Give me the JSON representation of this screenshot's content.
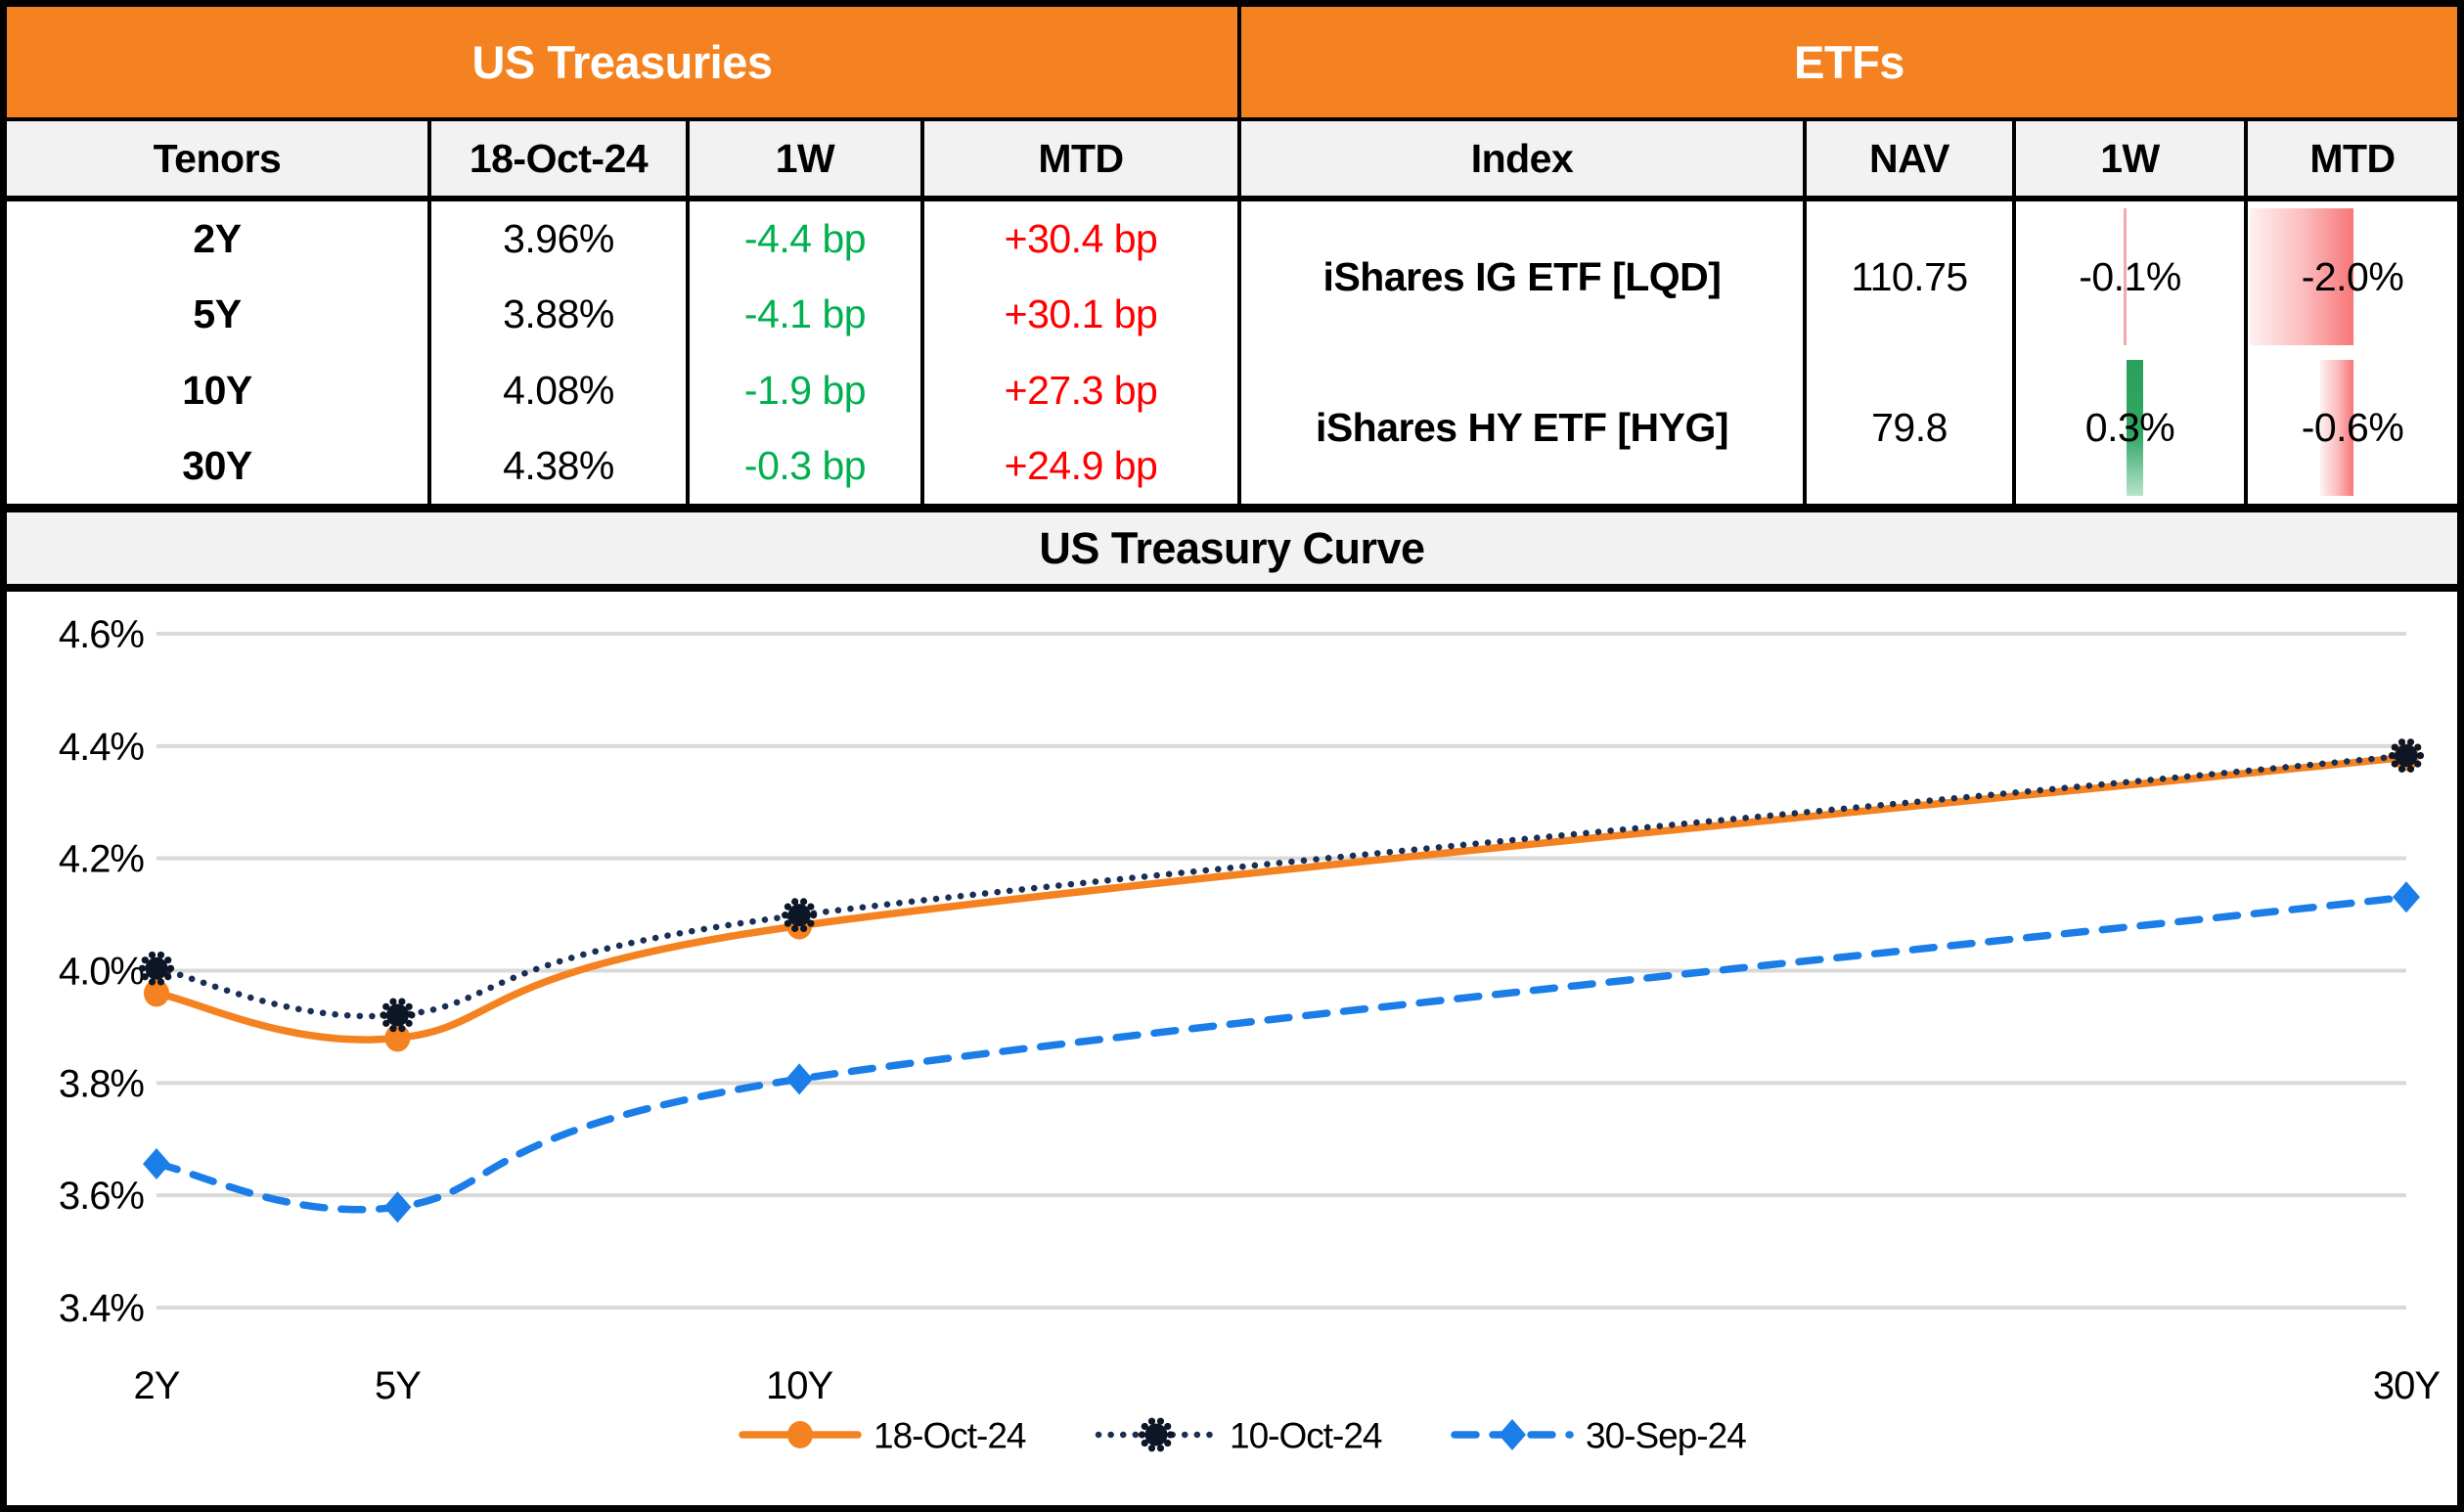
{
  "treasuries_table": {
    "title": "US Treasuries",
    "columns": [
      "Tenors",
      "18-Oct-24",
      "1W",
      "MTD"
    ],
    "rows": [
      {
        "tenor": "2Y",
        "rate": "3.96%",
        "w1": "-4.4 bp",
        "mtd": "+30.4 bp"
      },
      {
        "tenor": "5Y",
        "rate": "3.88%",
        "w1": "-4.1 bp",
        "mtd": "+30.1 bp"
      },
      {
        "tenor": "10Y",
        "rate": "4.08%",
        "w1": "-1.9 bp",
        "mtd": "+27.3 bp"
      },
      {
        "tenor": "30Y",
        "rate": "4.38%",
        "w1": "-0.3 bp",
        "mtd": "+24.9 bp"
      }
    ]
  },
  "etf_table": {
    "title": "ETFs",
    "columns": [
      "Index",
      "NAV",
      "1W",
      "MTD"
    ],
    "rows": [
      {
        "index": "iShares IG ETF [LQD]",
        "nav": "110.75",
        "w1": "-0.1%",
        "mtd": "-2.0%",
        "bars": {
          "w1": {
            "dir": "neg",
            "w": 3,
            "style": "hairline-red"
          },
          "mtd": {
            "dir": "neg",
            "w": 106,
            "style": "gradient-red"
          }
        }
      },
      {
        "index": "iShares HY ETF [HYG]",
        "nav": "79.8",
        "w1": "0.3%",
        "mtd": "-0.6%",
        "bars": {
          "w1": {
            "dir": "pos",
            "w": 17,
            "style": "gradient-green"
          },
          "mtd": {
            "dir": "neg",
            "w": 34,
            "style": "gradient-red"
          }
        }
      }
    ]
  },
  "databars": {
    "w1": {
      "axis_frac": 0.485
    },
    "mtd": {
      "axis_frac": 0.504
    }
  },
  "chart": {
    "title": "US Treasury Curve"
  },
  "chart_data": {
    "type": "line",
    "title": "US Treasury Curve",
    "categories": [
      "2Y",
      "5Y",
      "10Y",
      "30Y"
    ],
    "x_years": [
      2,
      5,
      10,
      30
    ],
    "series": [
      {
        "name": "18-Oct-24",
        "values": [
          3.96,
          3.88,
          4.08,
          4.38
        ],
        "color": "#F58220",
        "marker_color": "#F58220",
        "style": "solid",
        "marker": "circle"
      },
      {
        "name": "10-Oct-24",
        "values": [
          4.004,
          3.921,
          4.099,
          4.383
        ],
        "color": "#1A2F55",
        "marker_color": "#0C1626",
        "style": "dotted",
        "marker": "star"
      },
      {
        "name": "30-Sep-24",
        "values": [
          3.656,
          3.579,
          3.807,
          4.131
        ],
        "color": "#1B7EE8",
        "marker_color": "#1B7EE8",
        "style": "dashed",
        "marker": "diamond"
      }
    ],
    "ylim": [
      3.4,
      4.6
    ],
    "yticks": [
      "4.6%",
      "4.4%",
      "4.2%",
      "4.0%",
      "3.8%",
      "3.6%",
      "3.4%"
    ],
    "ytick_values": [
      4.6,
      4.4,
      4.2,
      4.0,
      3.8,
      3.6,
      3.4
    ],
    "grid": true,
    "legend_position": "bottom"
  },
  "colors": {
    "orange": "#F58220",
    "green_text": "#00B050",
    "red_text": "#FF0000",
    "bar_red": "#F87E80",
    "bar_green": "#2BA05C",
    "navy": "#1A2F55",
    "blue": "#1B7EE8",
    "grid_gray": "#D9D9D9",
    "band_gray": "#F2F2F2"
  }
}
